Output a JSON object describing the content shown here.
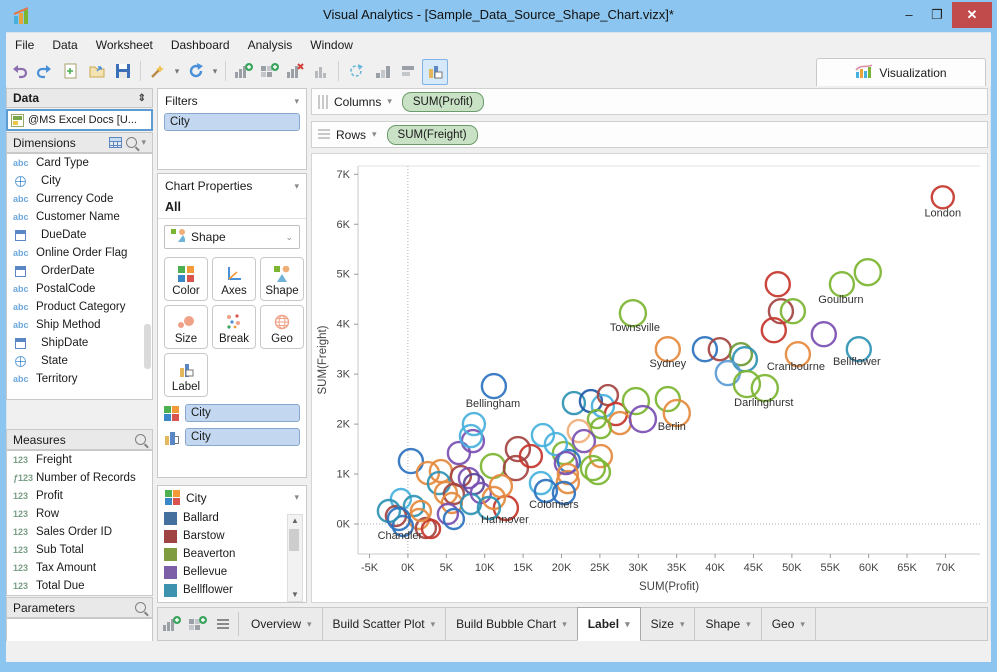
{
  "window": {
    "title": "Visual Analytics - [Sample_Data_Source_Shape_Chart.vizx]*",
    "minimize": "–",
    "maximize": "❐",
    "close": "✕"
  },
  "menu": {
    "items": [
      "File",
      "Data",
      "Worksheet",
      "Dashboard",
      "Analysis",
      "Window"
    ]
  },
  "toolbar": {
    "icons": [
      "undo",
      "redo",
      "new-file",
      "open-folder",
      "save",
      "sep",
      "wand",
      "caret",
      "refresh",
      "caret",
      "sep",
      "chart-add",
      "grid-add",
      "chart-remove",
      "bars",
      "sep",
      "rotate",
      "bars-asc",
      "bars-stack",
      "chart-selected"
    ],
    "visualization_label": "Visualization"
  },
  "data_panel": {
    "title": "Data",
    "source": "@MS Excel Docs [U...",
    "dimensions": {
      "label": "Dimensions",
      "items": [
        {
          "icon": "abc",
          "label": "Card Type"
        },
        {
          "icon": "geo",
          "label": "City"
        },
        {
          "icon": "abc",
          "label": "Currency Code"
        },
        {
          "icon": "abc",
          "label": "Customer Name"
        },
        {
          "icon": "date",
          "label": "DueDate"
        },
        {
          "icon": "abc",
          "label": "Online Order Flag"
        },
        {
          "icon": "date",
          "label": "OrderDate"
        },
        {
          "icon": "abc",
          "label": "PostalCode"
        },
        {
          "icon": "abc",
          "label": "Product Category"
        },
        {
          "icon": "abc",
          "label": "Ship Method"
        },
        {
          "icon": "date",
          "label": "ShipDate"
        },
        {
          "icon": "geo",
          "label": "State"
        },
        {
          "icon": "abc",
          "label": "Territory"
        }
      ]
    },
    "measures": {
      "label": "Measures",
      "items": [
        {
          "icon": "123",
          "label": "Freight"
        },
        {
          "icon": "f123",
          "label": "Number of Records"
        },
        {
          "icon": "123",
          "label": "Profit"
        },
        {
          "icon": "123",
          "label": "Row"
        },
        {
          "icon": "123",
          "label": "Sales Order ID"
        },
        {
          "icon": "123",
          "label": "Sub Total"
        },
        {
          "icon": "123",
          "label": "Tax Amount"
        },
        {
          "icon": "123",
          "label": "Total Due"
        }
      ]
    },
    "parameters": {
      "label": "Parameters"
    }
  },
  "filters_panel": {
    "title": "Filters",
    "chip": "City"
  },
  "chart_properties": {
    "title": "Chart Properties",
    "scope": "All",
    "dropdown_value": "Shape",
    "buttons": [
      "Color",
      "Axes",
      "Shape",
      "Size",
      "Break",
      "Geo",
      "Label"
    ],
    "shelves": [
      {
        "icon": "colorgrid",
        "value": "City"
      },
      {
        "icon": "labelbars",
        "value": "City"
      }
    ]
  },
  "legend": {
    "title": "City",
    "items": [
      {
        "color": "#44709D",
        "label": "Ballard"
      },
      {
        "color": "#A04443",
        "label": "Barstow"
      },
      {
        "color": "#7F9D3F",
        "label": "Beaverton"
      },
      {
        "color": "#7C5FA6",
        "label": "Bellevue"
      },
      {
        "color": "#3D93AE",
        "label": "Bellflower"
      },
      {
        "color": "#DC8B41",
        "label": ""
      }
    ]
  },
  "shelf": {
    "columns_label": "Columns",
    "columns_pill": "SUM(Profit)",
    "rows_label": "Rows",
    "rows_pill": "SUM(Freight)"
  },
  "bottom_bar": {
    "icons": [
      "chart-add",
      "grid-add",
      "list"
    ],
    "tabs": [
      {
        "label": "Overview",
        "active": false
      },
      {
        "label": "Build Scatter Plot",
        "active": false
      },
      {
        "label": "Build Bubble Chart",
        "active": false
      },
      {
        "label": "Label",
        "active": true
      },
      {
        "label": "Size",
        "active": false
      },
      {
        "label": "Shape",
        "active": false
      },
      {
        "label": "Geo",
        "active": false
      }
    ]
  },
  "chart_data": {
    "type": "scatter",
    "xlabel": "SUM(Profit)",
    "ylabel": "SUM(Freight)",
    "xlim": [
      -6500,
      74500
    ],
    "ylim": [
      -600,
      7166
    ],
    "x_tick_values": [
      -5000,
      0,
      5000,
      10000,
      15000,
      20000,
      25000,
      30000,
      35000,
      40000,
      45000,
      50000,
      55000,
      60000,
      65000,
      70000
    ],
    "x_tick_labels": [
      "-5K",
      "0K",
      "5K",
      "10K",
      "15K",
      "20K",
      "25K",
      "30K",
      "35K",
      "40K",
      "45K",
      "50K",
      "55K",
      "60K",
      "65K",
      "70K"
    ],
    "y_tick_values": [
      0,
      1000,
      2000,
      3000,
      4000,
      5000,
      6000,
      7000
    ],
    "y_tick_labels": [
      "0K",
      "1K",
      "2K",
      "3K",
      "4K",
      "5K",
      "6K",
      "7K"
    ],
    "grid": false,
    "zero_lines": true,
    "palette": {
      "red": "#C5352B",
      "darkred": "#A34441",
      "orange": "#E58A3E",
      "peach": "#F0AE79",
      "green": "#7CB532",
      "olive": "#6D9B34",
      "blue": "#2C72BF",
      "darkblue": "#1F5AA8",
      "lightblue": "#5B9BD5",
      "cyan": "#46B1DC",
      "teal": "#2F93B4",
      "purple": "#7A4FB2",
      "darkpurple": "#5C4796"
    },
    "points": [
      [
        69660,
        6540,
        "red",
        11
      ],
      [
        56510,
        4800,
        "green",
        12
      ],
      [
        59890,
        5040,
        "green",
        13
      ],
      [
        48170,
        4800,
        "red",
        12
      ],
      [
        48570,
        4260,
        "darkred",
        12
      ],
      [
        50130,
        4260,
        "green",
        12
      ],
      [
        47650,
        3880,
        "red",
        12
      ],
      [
        54160,
        3800,
        "purple",
        12
      ],
      [
        58720,
        3500,
        "teal",
        12
      ],
      [
        50780,
        3400,
        "orange",
        12
      ],
      [
        33850,
        3500,
        "orange",
        12
      ],
      [
        38670,
        3500,
        "blue",
        12
      ],
      [
        40620,
        3500,
        "darkred",
        11
      ],
      [
        43360,
        3400,
        "olive",
        11
      ],
      [
        43880,
        3300,
        "teal",
        12
      ],
      [
        41660,
        3020,
        "lightblue",
        12
      ],
      [
        44140,
        2800,
        "green",
        13
      ],
      [
        46480,
        2720,
        "green",
        13
      ],
      [
        29300,
        4220,
        "green",
        13
      ],
      [
        21610,
        2420,
        "teal",
        11
      ],
      [
        23830,
        2460,
        "darkblue",
        11
      ],
      [
        25390,
        2360,
        "cyan",
        11
      ],
      [
        26040,
        2580,
        "darkred",
        10
      ],
      [
        27080,
        2200,
        "red",
        11
      ],
      [
        27600,
        2020,
        "orange",
        11
      ],
      [
        24610,
        2100,
        "green",
        9
      ],
      [
        25130,
        1920,
        "green",
        10
      ],
      [
        29690,
        2460,
        "green",
        13
      ],
      [
        30600,
        2100,
        "purple",
        13
      ],
      [
        33850,
        2500,
        "green",
        12
      ],
      [
        35020,
        2220,
        "orange",
        13
      ],
      [
        22260,
        1860,
        "peach",
        11
      ],
      [
        22920,
        1660,
        "purple",
        11
      ],
      [
        20310,
        1420,
        "green",
        11
      ],
      [
        20960,
        1260,
        "blue",
        11
      ],
      [
        25130,
        1360,
        "orange",
        11
      ],
      [
        24090,
        1120,
        "green",
        12
      ],
      [
        24740,
        1040,
        "green",
        12
      ],
      [
        20830,
        840,
        "orange",
        11
      ],
      [
        390,
        1260,
        "blue",
        12
      ],
      [
        6640,
        1420,
        "purple",
        11
      ],
      [
        8460,
        1660,
        "purple",
        11
      ],
      [
        11070,
        1160,
        "green",
        12
      ],
      [
        14320,
        1500,
        "darkred",
        12
      ],
      [
        14060,
        1120,
        "darkred",
        12
      ],
      [
        16020,
        1360,
        "red",
        11
      ],
      [
        19270,
        1600,
        "cyan",
        11
      ],
      [
        17580,
        1780,
        "cyan",
        11
      ],
      [
        20570,
        1220,
        "purple",
        11
      ],
      [
        20830,
        1000,
        "orange",
        10
      ],
      [
        20310,
        620,
        "blue",
        11
      ],
      [
        17320,
        820,
        "cyan",
        11
      ],
      [
        17970,
        660,
        "blue",
        11
      ],
      [
        2600,
        1020,
        "orange",
        11
      ],
      [
        4300,
        1060,
        "orange",
        11
      ],
      [
        4040,
        820,
        "teal",
        11
      ],
      [
        4950,
        620,
        "orange",
        11
      ],
      [
        6900,
        960,
        "darkred",
        10
      ],
      [
        7940,
        920,
        "purple",
        10
      ],
      [
        8590,
        800,
        "darkpurple",
        10
      ],
      [
        5990,
        600,
        "darkred",
        10
      ],
      [
        5730,
        420,
        "orange",
        10
      ],
      [
        8200,
        400,
        "teal",
        10
      ],
      [
        9500,
        620,
        "purple",
        10
      ],
      [
        -910,
        500,
        "cyan",
        10
      ],
      [
        780,
        360,
        "teal",
        10
      ],
      [
        1430,
        100,
        "orange",
        10
      ],
      [
        -1560,
        160,
        "darkred",
        10
      ],
      [
        -650,
        -40,
        "blue",
        10
      ],
      [
        2340,
        -80,
        "darkred",
        10
      ],
      [
        3000,
        -100,
        "red",
        9
      ],
      [
        5210,
        200,
        "purple",
        10
      ],
      [
        5990,
        100,
        "blue",
        10
      ],
      [
        12760,
        320,
        "red",
        12
      ],
      [
        11200,
        520,
        "orange",
        11
      ],
      [
        10550,
        320,
        "teal",
        11
      ],
      [
        12110,
        760,
        "orange",
        11
      ],
      [
        11200,
        2760,
        "blue",
        12
      ],
      [
        8590,
        2000,
        "cyan",
        11
      ],
      [
        8200,
        1760,
        "cyan",
        11
      ],
      [
        -2470,
        260,
        "teal",
        11
      ],
      [
        -1170,
        100,
        "blue",
        11
      ],
      [
        1690,
        260,
        "orange",
        10
      ]
    ],
    "labels": [
      {
        "text": "London",
        "x": 69660,
        "y": 6160
      },
      {
        "text": "Goulburn",
        "x": 56380,
        "y": 4420
      },
      {
        "text": "Townsville",
        "x": 29560,
        "y": 3860
      },
      {
        "text": "Sydney",
        "x": 33850,
        "y": 3140
      },
      {
        "text": "Cranbourne",
        "x": 50520,
        "y": 3080
      },
      {
        "text": "Bellflower",
        "x": 58460,
        "y": 3180
      },
      {
        "text": "Darlinghurst",
        "x": 46350,
        "y": 2360
      },
      {
        "text": "Berlin",
        "x": 34370,
        "y": 1880
      },
      {
        "text": "Bellingham",
        "x": 11070,
        "y": 2340
      },
      {
        "text": "Colomiers",
        "x": 19010,
        "y": 320
      },
      {
        "text": "Hannover",
        "x": 12630,
        "y": 20
      },
      {
        "text": "Chandler",
        "x": -1040,
        "y": -300
      }
    ]
  }
}
